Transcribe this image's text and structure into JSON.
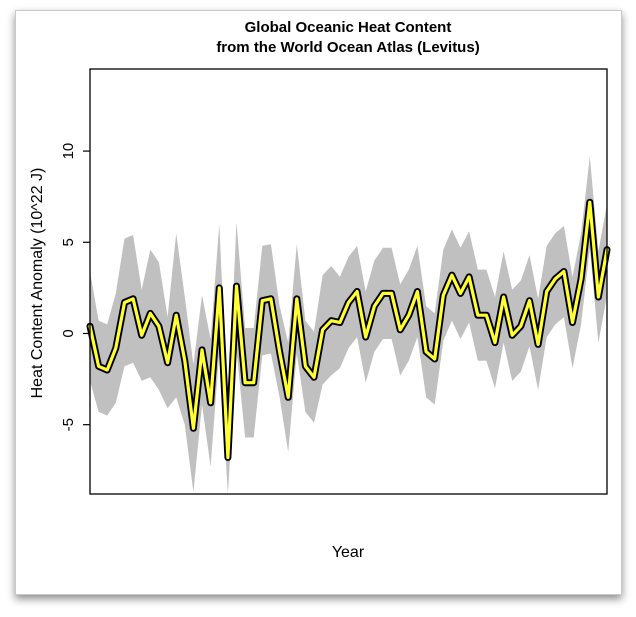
{
  "chart_data": {
    "type": "line",
    "title": "Global Oceanic Heat Content",
    "subtitle": "from the World Ocean Atlas (Levitus)",
    "xlabel": "Year",
    "ylabel": "Heat Content Anomaly (10^22 J)",
    "ylim": [
      -8.8,
      14.5
    ],
    "yticks": [
      -5,
      0,
      5,
      10
    ],
    "ytick_labels": [
      "-5",
      "0",
      "5",
      "10"
    ],
    "x_index_range": [
      0,
      60
    ],
    "grid": false,
    "colors": {
      "line": "#ffff33",
      "outline": "#000000",
      "band": "#c0c0c0"
    },
    "series": [
      {
        "values": [
          0.4,
          -1.8,
          -2.0,
          -0.8,
          1.7,
          1.9,
          -0.1,
          1.1,
          0.4,
          -1.6,
          1.0,
          -1.5,
          -5.2,
          -0.9,
          -3.8,
          2.5,
          -6.8,
          2.6,
          -2.7,
          -2.7,
          1.8,
          1.9,
          -1.0,
          -3.5,
          1.9,
          -1.8,
          -2.4,
          0.2,
          0.7,
          0.6,
          1.7,
          2.3,
          -0.2,
          1.5,
          2.2,
          2.2,
          0.2,
          1.0,
          2.3,
          -1.0,
          -1.4,
          2.1,
          3.2,
          2.2,
          3.1,
          1.0,
          1.0,
          -0.5,
          2.0,
          -0.1,
          0.4,
          1.8,
          -0.6,
          2.3,
          3.0,
          3.4,
          0.6,
          3.0,
          7.2,
          2.0,
          4.6
        ],
        "band_width": [
          3.0,
          2.5,
          2.5,
          3.0,
          3.5,
          3.5,
          2.5,
          3.5,
          3.5,
          2.5,
          4.5,
          3.5,
          3.5,
          3.0,
          3.5,
          3.5,
          2.5,
          3.5,
          3.0,
          3.0,
          3.0,
          3.0,
          2.5,
          3.0,
          3.0,
          2.5,
          2.5,
          3.0,
          3.0,
          2.5,
          2.5,
          2.5,
          2.5,
          2.5,
          2.5,
          2.5,
          2.5,
          2.5,
          2.5,
          2.5,
          2.5,
          2.5,
          2.5,
          2.5,
          2.5,
          2.5,
          2.5,
          2.5,
          2.5,
          2.5,
          2.5,
          2.5,
          2.5,
          2.5,
          2.5,
          2.5,
          2.5,
          2.5,
          2.5,
          2.5,
          2.5
        ]
      }
    ]
  }
}
